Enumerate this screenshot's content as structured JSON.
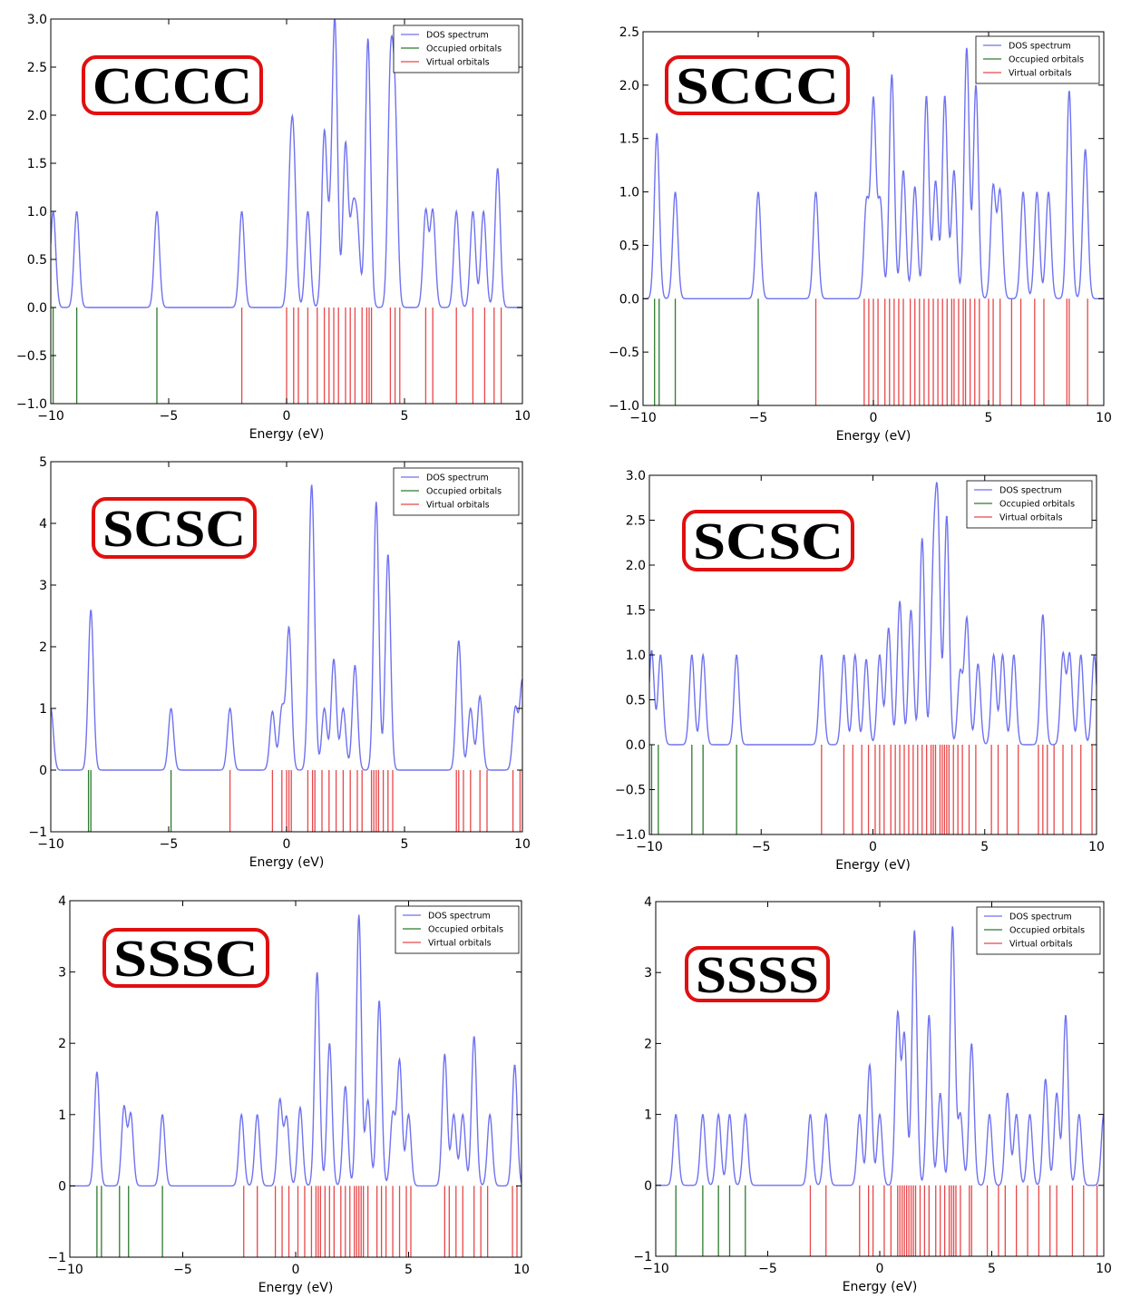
{
  "colors": {
    "dos": "#6f72f0",
    "occupied": "#2d7a2d",
    "virtual": "#e8474a",
    "badge_border": "#e01010"
  },
  "legend_labels": [
    "DOS spectrum",
    "Occupied orbitals",
    "Virtual orbitals"
  ],
  "chart_data": [
    {
      "type": "line",
      "title": "CCCC",
      "xlabel": "Energy (eV)",
      "xlim": [
        -10,
        10
      ],
      "ylim": [
        -1.0,
        3.0
      ],
      "xticks": [
        -10,
        -5,
        0,
        5,
        10
      ],
      "yticks": [
        -1.0,
        -0.5,
        0.0,
        0.5,
        1.0,
        1.5,
        2.0,
        2.5,
        3.0
      ],
      "ytick_labels": [
        "−1.0",
        "−0.5",
        "0.0",
        "0.5",
        "1.0",
        "1.5",
        "2.0",
        "2.5",
        "3.0"
      ],
      "legend": "top-right",
      "occupied_orbitals": [
        -10.1,
        -9.9,
        -8.9,
        -5.5
      ],
      "virtual_orbitals": [
        -1.9,
        0.0,
        0.3,
        0.5,
        0.9,
        1.3,
        1.6,
        1.8,
        2.0,
        2.2,
        2.5,
        2.7,
        2.9,
        3.2,
        3.4,
        3.5,
        3.6,
        4.4,
        4.6,
        4.8,
        5.9,
        6.2,
        7.2,
        7.9,
        8.4,
        8.8,
        9.1
      ],
      "dos_peaks": [
        [
          -9.9,
          1.0
        ],
        [
          -8.9,
          1.0
        ],
        [
          -5.5,
          1.0
        ],
        [
          -1.9,
          1.0
        ],
        [
          0.15,
          1.1
        ],
        [
          0.3,
          1.4
        ],
        [
          0.9,
          1.0
        ],
        [
          1.6,
          1.8
        ],
        [
          1.85,
          0.6
        ],
        [
          2.05,
          2.9
        ],
        [
          2.5,
          1.7
        ],
        [
          2.8,
          0.9
        ],
        [
          3.0,
          0.8
        ],
        [
          3.45,
          2.8
        ],
        [
          4.4,
          2.3
        ],
        [
          4.6,
          1.9
        ],
        [
          5.9,
          1.0
        ],
        [
          6.2,
          1.0
        ],
        [
          7.2,
          1.0
        ],
        [
          7.9,
          1.0
        ],
        [
          8.35,
          1.0
        ],
        [
          8.95,
          1.45
        ]
      ]
    },
    {
      "type": "line",
      "title": "SCCC",
      "xlabel": "Energy (eV)",
      "xlim": [
        -10,
        10
      ],
      "ylim": [
        -1.0,
        2.5
      ],
      "xticks": [
        -10,
        -5,
        0,
        5,
        10
      ],
      "yticks": [
        -1.0,
        -0.5,
        0.0,
        0.5,
        1.0,
        1.5,
        2.0,
        2.5
      ],
      "ytick_labels": [
        "−1.0",
        "−0.5",
        "0.0",
        "0.5",
        "1.0",
        "1.5",
        "2.0",
        "2.5"
      ],
      "legend": "top-right",
      "occupied_orbitals": [
        -9.5,
        -9.3,
        -8.6,
        -5.0
      ],
      "virtual_orbitals": [
        -2.5,
        -0.4,
        -0.2,
        0.0,
        0.2,
        0.5,
        0.7,
        0.9,
        1.1,
        1.3,
        1.6,
        1.8,
        2.0,
        2.2,
        2.4,
        2.6,
        2.8,
        3.0,
        3.2,
        3.4,
        3.5,
        3.7,
        3.9,
        4.0,
        4.2,
        4.4,
        4.6,
        5.0,
        5.2,
        5.5,
        6.0,
        6.4,
        7.0,
        7.4,
        8.4,
        8.5,
        9.3
      ],
      "dos_peaks": [
        [
          -9.4,
          1.55
        ],
        [
          -8.6,
          1.0
        ],
        [
          -5.0,
          1.0
        ],
        [
          -2.5,
          1.0
        ],
        [
          -0.3,
          0.9
        ],
        [
          0.0,
          1.85
        ],
        [
          0.3,
          0.9
        ],
        [
          0.8,
          2.1
        ],
        [
          1.3,
          1.2
        ],
        [
          1.8,
          1.05
        ],
        [
          2.3,
          1.9
        ],
        [
          2.7,
          1.1
        ],
        [
          3.1,
          1.9
        ],
        [
          3.5,
          1.2
        ],
        [
          4.05,
          2.35
        ],
        [
          4.45,
          2.0
        ],
        [
          5.2,
          1.05
        ],
        [
          5.5,
          1.0
        ],
        [
          6.5,
          1.0
        ],
        [
          7.1,
          1.0
        ],
        [
          7.6,
          1.0
        ],
        [
          8.5,
          1.95
        ],
        [
          9.2,
          1.4
        ]
      ]
    },
    {
      "type": "line",
      "title": "SCSC",
      "xlabel": "Energy (eV)",
      "xlim": [
        -10,
        10
      ],
      "ylim": [
        -1,
        5
      ],
      "xticks": [
        -10,
        -5,
        0,
        5,
        10
      ],
      "yticks": [
        -1,
        0,
        1,
        2,
        3,
        4,
        5
      ],
      "ytick_labels": [
        "−1",
        "0",
        "1",
        "2",
        "3",
        "4",
        "5"
      ],
      "legend": "top-right",
      "occupied_orbitals": [
        -8.4,
        -8.3,
        -4.9
      ],
      "virtual_orbitals": [
        -2.4,
        -0.6,
        -0.2,
        0.0,
        0.1,
        0.2,
        0.9,
        1.1,
        1.2,
        1.5,
        1.8,
        2.1,
        2.4,
        2.7,
        3.0,
        3.2,
        3.6,
        3.7,
        3.8,
        3.9,
        4.1,
        4.3,
        4.5,
        7.2,
        7.3,
        7.5,
        7.8,
        8.2,
        8.5,
        9.6,
        9.9
      ],
      "dos_peaks": [
        [
          -10.0,
          1.0
        ],
        [
          -8.3,
          2.6
        ],
        [
          -4.9,
          1.0
        ],
        [
          -2.4,
          1.0
        ],
        [
          -0.6,
          0.95
        ],
        [
          -0.2,
          1.0
        ],
        [
          0.1,
          2.3
        ],
        [
          1.0,
          2.0
        ],
        [
          1.1,
          3.1
        ],
        [
          1.6,
          1.0
        ],
        [
          2.0,
          1.8
        ],
        [
          2.4,
          1.0
        ],
        [
          2.9,
          1.7
        ],
        [
          3.8,
          4.35
        ],
        [
          4.3,
          3.5
        ],
        [
          7.3,
          2.1
        ],
        [
          7.8,
          1.0
        ],
        [
          8.2,
          1.2
        ],
        [
          9.7,
          1.0
        ],
        [
          10.0,
          1.45
        ]
      ]
    },
    {
      "type": "line",
      "title": "SCSC",
      "xlabel": "Energy (eV)",
      "xlim": [
        -10,
        10
      ],
      "ylim": [
        -1.0,
        3.0
      ],
      "xticks": [
        -10,
        -5,
        0,
        5,
        10
      ],
      "yticks": [
        -1.0,
        -0.5,
        0.0,
        0.5,
        1.0,
        1.5,
        2.0,
        2.5,
        3.0
      ],
      "ytick_labels": [
        "−1.0",
        "−0.5",
        "0.0",
        "0.5",
        "1.0",
        "1.5",
        "2.0",
        "2.5",
        "3.0"
      ],
      "legend": "top-right",
      "occupied_orbitals": [
        -9.9,
        -9.6,
        -8.1,
        -7.6,
        -6.1
      ],
      "virtual_orbitals": [
        -2.3,
        -1.3,
        -0.9,
        -0.5,
        -0.2,
        0.1,
        0.3,
        0.5,
        0.8,
        1.0,
        1.2,
        1.4,
        1.6,
        1.8,
        2.0,
        2.2,
        2.4,
        2.6,
        2.7,
        2.8,
        3.0,
        3.1,
        3.2,
        3.3,
        3.4,
        3.6,
        3.8,
        4.0,
        4.3,
        4.6,
        5.3,
        5.6,
        6.0,
        6.5,
        7.4,
        7.6,
        7.8,
        8.1,
        8.5,
        8.9,
        9.3,
        9.8
      ],
      "dos_peaks": [
        [
          -9.9,
          1.05
        ],
        [
          -9.5,
          1.0
        ],
        [
          -8.1,
          1.0
        ],
        [
          -7.6,
          1.0
        ],
        [
          -6.1,
          1.0
        ],
        [
          -2.3,
          1.0
        ],
        [
          -1.3,
          1.0
        ],
        [
          -0.8,
          1.0
        ],
        [
          -0.3,
          0.95
        ],
        [
          0.3,
          1.0
        ],
        [
          0.7,
          1.3
        ],
        [
          1.2,
          1.6
        ],
        [
          1.7,
          1.5
        ],
        [
          2.2,
          2.3
        ],
        [
          2.7,
          1.8
        ],
        [
          2.9,
          2.45
        ],
        [
          3.3,
          2.55
        ],
        [
          3.9,
          0.8
        ],
        [
          4.2,
          1.4
        ],
        [
          4.7,
          0.9
        ],
        [
          5.4,
          1.0
        ],
        [
          5.8,
          1.0
        ],
        [
          6.3,
          1.0
        ],
        [
          7.6,
          1.45
        ],
        [
          8.5,
          1.0
        ],
        [
          8.8,
          1.0
        ],
        [
          9.3,
          1.0
        ],
        [
          9.9,
          1.0
        ]
      ]
    },
    {
      "type": "line",
      "title": "SSSC",
      "xlabel": "Energy (eV)",
      "xlim": [
        -10,
        10
      ],
      "ylim": [
        -1,
        4
      ],
      "xticks": [
        -10,
        -5,
        0,
        5,
        10
      ],
      "yticks": [
        -1,
        0,
        1,
        2,
        3,
        4
      ],
      "ytick_labels": [
        "−1",
        "0",
        "1",
        "2",
        "3",
        "4"
      ],
      "legend": "top-right",
      "occupied_orbitals": [
        -8.8,
        -8.6,
        -7.8,
        -7.4,
        -5.9
      ],
      "virtual_orbitals": [
        -2.3,
        -1.7,
        -0.9,
        -0.6,
        -0.3,
        0.1,
        0.4,
        0.7,
        0.9,
        1.0,
        1.1,
        1.3,
        1.5,
        1.7,
        2.0,
        2.2,
        2.4,
        2.6,
        2.7,
        2.8,
        2.9,
        3.0,
        3.2,
        3.6,
        3.8,
        4.0,
        4.3,
        4.6,
        4.9,
        5.1,
        6.6,
        6.8,
        7.1,
        7.4,
        7.9,
        8.2,
        8.5,
        9.6,
        9.8
      ],
      "dos_peaks": [
        [
          -8.8,
          1.6
        ],
        [
          -7.6,
          1.1
        ],
        [
          -7.3,
          1.0
        ],
        [
          -5.9,
          1.0
        ],
        [
          -2.4,
          1.0
        ],
        [
          -1.7,
          1.0
        ],
        [
          -0.7,
          1.2
        ],
        [
          -0.4,
          0.95
        ],
        [
          0.2,
          1.1
        ],
        [
          0.95,
          3.0
        ],
        [
          1.5,
          2.0
        ],
        [
          2.2,
          1.4
        ],
        [
          2.8,
          3.8
        ],
        [
          3.2,
          1.2
        ],
        [
          3.7,
          2.6
        ],
        [
          4.3,
          1.0
        ],
        [
          4.6,
          1.75
        ],
        [
          5.0,
          1.0
        ],
        [
          6.6,
          1.85
        ],
        [
          7.0,
          1.0
        ],
        [
          7.4,
          1.0
        ],
        [
          7.9,
          2.1
        ],
        [
          8.6,
          1.0
        ],
        [
          9.7,
          1.7
        ]
      ]
    },
    {
      "type": "line",
      "title": "SSSS",
      "xlabel": "Energy (eV)",
      "xlim": [
        -10,
        10
      ],
      "ylim": [
        -1,
        4
      ],
      "xticks": [
        -10,
        -5,
        0,
        5,
        10
      ],
      "yticks": [
        -1,
        0,
        1,
        2,
        3,
        4
      ],
      "ytick_labels": [
        "−1",
        "0",
        "1",
        "2",
        "3",
        "4"
      ],
      "legend": "top-right",
      "occupied_orbitals": [
        -9.1,
        -7.9,
        -7.2,
        -6.7,
        -6.0
      ],
      "virtual_orbitals": [
        -3.1,
        -2.4,
        -0.9,
        -0.5,
        -0.3,
        0.2,
        0.5,
        0.8,
        0.9,
        1.0,
        1.1,
        1.2,
        1.3,
        1.4,
        1.5,
        1.6,
        1.8,
        2.0,
        2.2,
        2.5,
        2.7,
        2.9,
        3.1,
        3.2,
        3.3,
        3.4,
        3.6,
        4.0,
        4.1,
        4.8,
        5.3,
        5.6,
        6.1,
        6.6,
        7.1,
        7.6,
        7.9,
        8.6,
        9.1,
        9.7
      ],
      "dos_peaks": [
        [
          -9.1,
          1.0
        ],
        [
          -7.9,
          1.0
        ],
        [
          -7.2,
          1.0
        ],
        [
          -6.7,
          1.0
        ],
        [
          -6.0,
          1.0
        ],
        [
          -3.1,
          1.0
        ],
        [
          -2.4,
          1.0
        ],
        [
          -0.9,
          1.0
        ],
        [
          -0.45,
          1.7
        ],
        [
          0.0,
          1.0
        ],
        [
          0.8,
          2.4
        ],
        [
          1.1,
          2.1
        ],
        [
          1.55,
          3.6
        ],
        [
          2.2,
          2.4
        ],
        [
          2.7,
          1.3
        ],
        [
          3.25,
          3.65
        ],
        [
          3.6,
          1.0
        ],
        [
          4.1,
          2.0
        ],
        [
          4.9,
          1.0
        ],
        [
          5.7,
          1.3
        ],
        [
          6.1,
          1.0
        ],
        [
          6.7,
          1.0
        ],
        [
          7.4,
          1.5
        ],
        [
          7.9,
          1.3
        ],
        [
          8.3,
          2.4
        ],
        [
          8.9,
          1.0
        ],
        [
          10.0,
          1.0
        ]
      ]
    }
  ]
}
